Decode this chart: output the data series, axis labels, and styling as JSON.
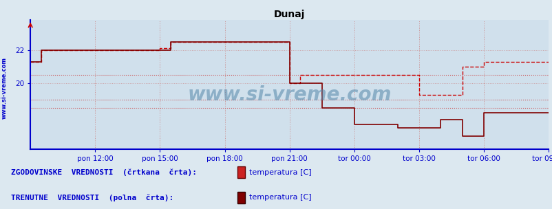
{
  "title": "Dunaj",
  "bg_color": "#d0e0ec",
  "outer_bg_color": "#dce8f0",
  "line_color_dashed": "#cc0000",
  "line_color_solid": "#800000",
  "grid_color_v": "#cc8888",
  "grid_color_h": "#cc8888",
  "hline_color": "#cc4444",
  "axis_color": "#0000cc",
  "text_color": "#0000cc",
  "ylabel_color": "#0000cc",
  "xtick_labels": [
    "pon 12:00",
    "pon 15:00",
    "pon 18:00",
    "pon 21:00",
    "tor 00:00",
    "tor 03:00",
    "tor 06:00",
    "tor 09:00"
  ],
  "ytick_labels": [
    "20",
    "22"
  ],
  "ytick_values": [
    20,
    22
  ],
  "ymin": 16.0,
  "ymax": 23.8,
  "xmin": 0,
  "xmax": 288,
  "legend_text1": "ZGODOVINSKE  VREDNOSTI  (črtkana  črta):",
  "legend_text2": "TRENUTNE  VREDNOSTI  (polna  črta):",
  "legend_item1": "temperatura [C]",
  "legend_item2": "temperatura [C]",
  "watermark": "www.si-vreme.com",
  "dashed_data_x": [
    0,
    6,
    6,
    12,
    12,
    72,
    72,
    78,
    78,
    108,
    108,
    144,
    144,
    150,
    150,
    168,
    168,
    180,
    180,
    204,
    204,
    216,
    216,
    228,
    228,
    240,
    240,
    252,
    252,
    288
  ],
  "dashed_data_y": [
    21.3,
    21.3,
    22.0,
    22.0,
    22.0,
    22.0,
    22.1,
    22.1,
    22.5,
    22.5,
    22.5,
    22.5,
    20.0,
    20.0,
    20.5,
    20.5,
    20.5,
    20.5,
    20.5,
    20.5,
    20.5,
    20.5,
    19.3,
    19.3,
    19.3,
    19.3,
    21.0,
    21.0,
    21.3,
    21.3
  ],
  "solid_data_x": [
    0,
    6,
    6,
    72,
    72,
    78,
    78,
    108,
    108,
    144,
    144,
    162,
    162,
    180,
    180,
    204,
    204,
    228,
    228,
    240,
    240,
    252,
    252,
    258,
    258,
    288
  ],
  "solid_data_y": [
    21.3,
    21.3,
    22.0,
    22.0,
    22.0,
    22.0,
    22.5,
    22.5,
    22.5,
    22.5,
    20.0,
    20.0,
    18.5,
    18.5,
    17.5,
    17.5,
    17.3,
    17.3,
    17.8,
    17.8,
    16.8,
    16.8,
    18.2,
    18.2,
    18.2,
    18.2
  ],
  "hlines": [
    20.5,
    19.0,
    18.5
  ],
  "font_size_title": 10,
  "font_size_ticks": 7.5,
  "font_size_legend": 8,
  "font_size_watermark": 20,
  "legend1_color": "#cc2222",
  "legend2_color": "#800000"
}
